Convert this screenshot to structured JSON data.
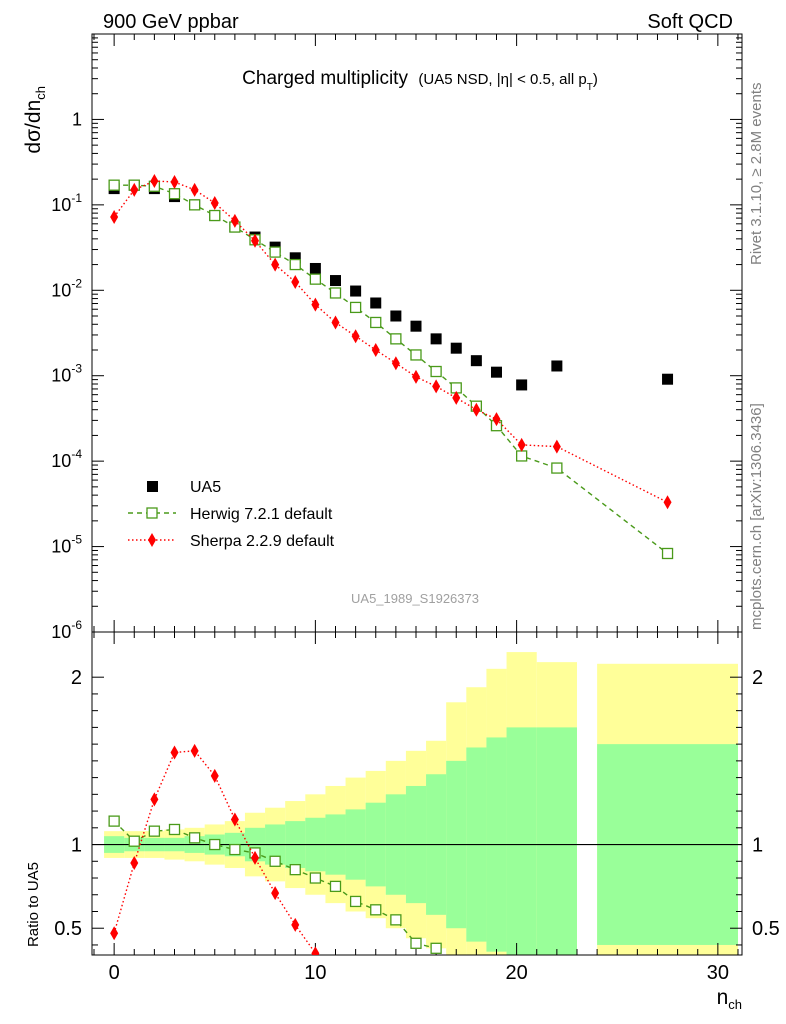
{
  "header": {
    "left": "900 GeV ppbar",
    "right": "Soft QCD"
  },
  "side_labels": {
    "rivet": "Rivet 3.1.10, ≥ 2.8M events",
    "mcplots": "mcplots.cern.ch [arXiv:1306.3436]"
  },
  "colors": {
    "data": "#000000",
    "herwig": "#4a9a1a",
    "sherpa": "#ff0000",
    "band_outer": "#ffff99",
    "band_inner": "#99ff99"
  },
  "chart_data": [
    {
      "type": "scatter",
      "title": "Charged multiplicity",
      "subtitle": "(UA5 NSD, |η| < 0.5, all p_T)",
      "ylabel": "dσ/dn_ch",
      "xlabel": "n_ch",
      "yscale": "log",
      "xlim": [
        -1.1,
        31.2
      ],
      "ylim": [
        1e-06,
        10
      ],
      "y_ticks": [
        "10^-6",
        "10^-5",
        "10^-4",
        "10^-3",
        "10^-2",
        "10^-1",
        "1"
      ],
      "analysis_id": "UA5_1989_S1926373",
      "legend_position": "lower-left",
      "series": [
        {
          "name": "UA5",
          "marker": "square-filled",
          "x": [
            0,
            1,
            2,
            3,
            4,
            5,
            6,
            7,
            8,
            9,
            10,
            11,
            12,
            13,
            14,
            15,
            16,
            17,
            18,
            19,
            20.25,
            22,
            27.5
          ],
          "y": [
            0.155,
            0.17,
            0.155,
            0.125,
            0.1,
            0.075,
            0.055,
            0.042,
            0.032,
            0.024,
            0.018,
            0.013,
            0.0098,
            0.0071,
            0.005,
            0.0038,
            0.0027,
            0.0021,
            0.0015,
            0.0011,
            0.00078,
            0.0013,
            0.00091
          ]
        },
        {
          "name": "Herwig 7.2.1 default",
          "marker": "square-open",
          "line": "dashed",
          "x": [
            0,
            1,
            2,
            3,
            4,
            5,
            6,
            7,
            8,
            9,
            10,
            11,
            12,
            13,
            14,
            15,
            16,
            17,
            18,
            19,
            20.25,
            22,
            27.5
          ],
          "y": [
            0.17,
            0.17,
            0.165,
            0.135,
            0.1,
            0.075,
            0.055,
            0.039,
            0.028,
            0.02,
            0.0135,
            0.0093,
            0.0063,
            0.0042,
            0.0027,
            0.00175,
            0.00112,
            0.00072,
            0.00044,
            0.00026,
            0.000115,
            8.3e-05,
            8.3e-06
          ]
        },
        {
          "name": "Sherpa 2.2.9 default",
          "marker": "diamond-filled",
          "line": "dotted",
          "x": [
            0,
            1,
            2,
            3,
            4,
            5,
            6,
            7,
            8,
            9,
            10,
            11,
            12,
            13,
            14,
            15,
            16,
            17,
            18,
            19,
            20.25,
            22,
            27.5
          ],
          "y": [
            0.072,
            0.15,
            0.19,
            0.185,
            0.15,
            0.105,
            0.065,
            0.038,
            0.02,
            0.0125,
            0.0068,
            0.0042,
            0.0029,
            0.002,
            0.0014,
            0.00097,
            0.00075,
            0.00055,
            0.0004,
            0.00031,
            0.000155,
            0.000148,
            3.3e-05
          ]
        }
      ]
    },
    {
      "type": "scatter",
      "ylabel": "Ratio to UA5",
      "xlabel": "n_ch",
      "xlim": [
        -1.1,
        31.2
      ],
      "ylim": [
        0.34,
        2.27
      ],
      "y_ticks": [
        "0.5",
        "1",
        "2"
      ],
      "x_ticks": [
        "0",
        "10",
        "20",
        "30"
      ],
      "reference_line": 1,
      "bands": {
        "x_edges": [
          -0.5,
          0.5,
          1.5,
          2.5,
          3.5,
          4.5,
          5.5,
          6.5,
          7.5,
          8.5,
          9.5,
          10.5,
          11.5,
          12.5,
          13.5,
          14.5,
          15.5,
          16.5,
          17.5,
          18.5,
          19.5,
          21,
          23,
          24,
          31
        ],
        "inner": [
          [
            0.95,
            1.05
          ],
          [
            0.96,
            1.04
          ],
          [
            0.96,
            1.04
          ],
          [
            0.96,
            1.04
          ],
          [
            0.95,
            1.05
          ],
          [
            0.94,
            1.06
          ],
          [
            0.93,
            1.07
          ],
          [
            0.9,
            1.1
          ],
          [
            0.88,
            1.12
          ],
          [
            0.86,
            1.14
          ],
          [
            0.84,
            1.16
          ],
          [
            0.82,
            1.18
          ],
          [
            0.79,
            1.21
          ],
          [
            0.75,
            1.25
          ],
          [
            0.7,
            1.3
          ],
          [
            0.65,
            1.35
          ],
          [
            0.58,
            1.42
          ],
          [
            0.5,
            1.5
          ],
          [
            0.42,
            1.58
          ],
          [
            0.36,
            1.64
          ],
          [
            0.3,
            1.7
          ],
          [
            0.3,
            1.7
          ],
          null,
          [
            0.4,
            1.6
          ]
        ],
        "outer": [
          [
            0.92,
            1.08
          ],
          [
            0.92,
            1.08
          ],
          [
            0.92,
            1.08
          ],
          [
            0.91,
            1.09
          ],
          [
            0.9,
            1.1
          ],
          [
            0.88,
            1.12
          ],
          [
            0.86,
            1.14
          ],
          [
            0.81,
            1.19
          ],
          [
            0.78,
            1.22
          ],
          [
            0.74,
            1.26
          ],
          [
            0.7,
            1.3
          ],
          [
            0.65,
            1.35
          ],
          [
            0.6,
            1.4
          ],
          [
            0.56,
            1.44
          ],
          [
            0.5,
            1.5
          ],
          [
            0.44,
            1.56
          ],
          [
            0.38,
            1.62
          ],
          [
            0.34,
            1.85
          ],
          [
            0.34,
            1.94
          ],
          [
            0.34,
            2.05
          ],
          [
            0.34,
            2.15
          ],
          [
            0.34,
            2.09
          ],
          null,
          [
            0.34,
            2.08
          ]
        ]
      },
      "series": [
        {
          "name": "Herwig 7.2.1 default",
          "marker": "square-open",
          "line": "dashed",
          "x": [
            0,
            1,
            2,
            3,
            4,
            5,
            6,
            7,
            8,
            9,
            10,
            11,
            12,
            13,
            14,
            15,
            16
          ],
          "y": [
            1.14,
            1.02,
            1.08,
            1.09,
            1.04,
            1.0,
            0.97,
            0.95,
            0.9,
            0.85,
            0.8,
            0.75,
            0.66,
            0.61,
            0.55,
            0.41,
            0.38
          ]
        },
        {
          "name": "Sherpa 2.2.9 default",
          "marker": "diamond-filled",
          "line": "dotted",
          "x": [
            0,
            1,
            2,
            3,
            4,
            5,
            6,
            7,
            8,
            9,
            10
          ],
          "y": [
            0.47,
            0.89,
            1.27,
            1.55,
            1.56,
            1.41,
            1.15,
            0.92,
            0.71,
            0.52,
            0.35
          ]
        }
      ]
    }
  ]
}
